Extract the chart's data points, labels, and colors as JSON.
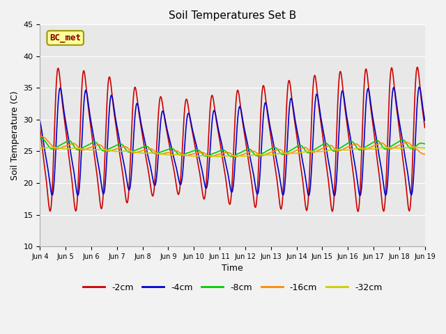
{
  "title": "Soil Temperatures Set B",
  "xlabel": "Time",
  "ylabel": "Soil Temperature (C)",
  "ylim": [
    10,
    45
  ],
  "xlim_start": 0,
  "xlim_end": 15,
  "x_tick_labels": [
    "Jun 4",
    "Jun 5",
    "Jun 6",
    "Jun 7",
    "Jun 8",
    "Jun 9",
    "Jun 10",
    "Jun 11",
    "Jun 12",
    "Jun 13",
    "Jun 14",
    "Jun 15",
    "Jun 16",
    "Jun 17",
    "Jun 18",
    "Jun 19"
  ],
  "series": [
    {
      "label": "-2cm",
      "color": "#cc0000",
      "depth_factor": 0.0,
      "phase_delay": 0.0
    },
    {
      "label": "-4cm",
      "color": "#0000cc",
      "depth_factor": 0.6,
      "phase_delay": 0.08
    },
    {
      "label": "-8cm",
      "color": "#00cc00",
      "depth_factor": 3.0,
      "phase_delay": 0.25
    },
    {
      "label": "-16cm",
      "color": "#ff8800",
      "depth_factor": 4.5,
      "phase_delay": 0.42
    },
    {
      "label": "-32cm",
      "color": "#cccc00",
      "depth_factor": 8.0,
      "phase_delay": 0.65
    }
  ],
  "annotation_text": "BC_met",
  "background_color": "#e8e8e8",
  "title_fontsize": 11,
  "axis_fontsize": 9,
  "legend_fontsize": 9
}
